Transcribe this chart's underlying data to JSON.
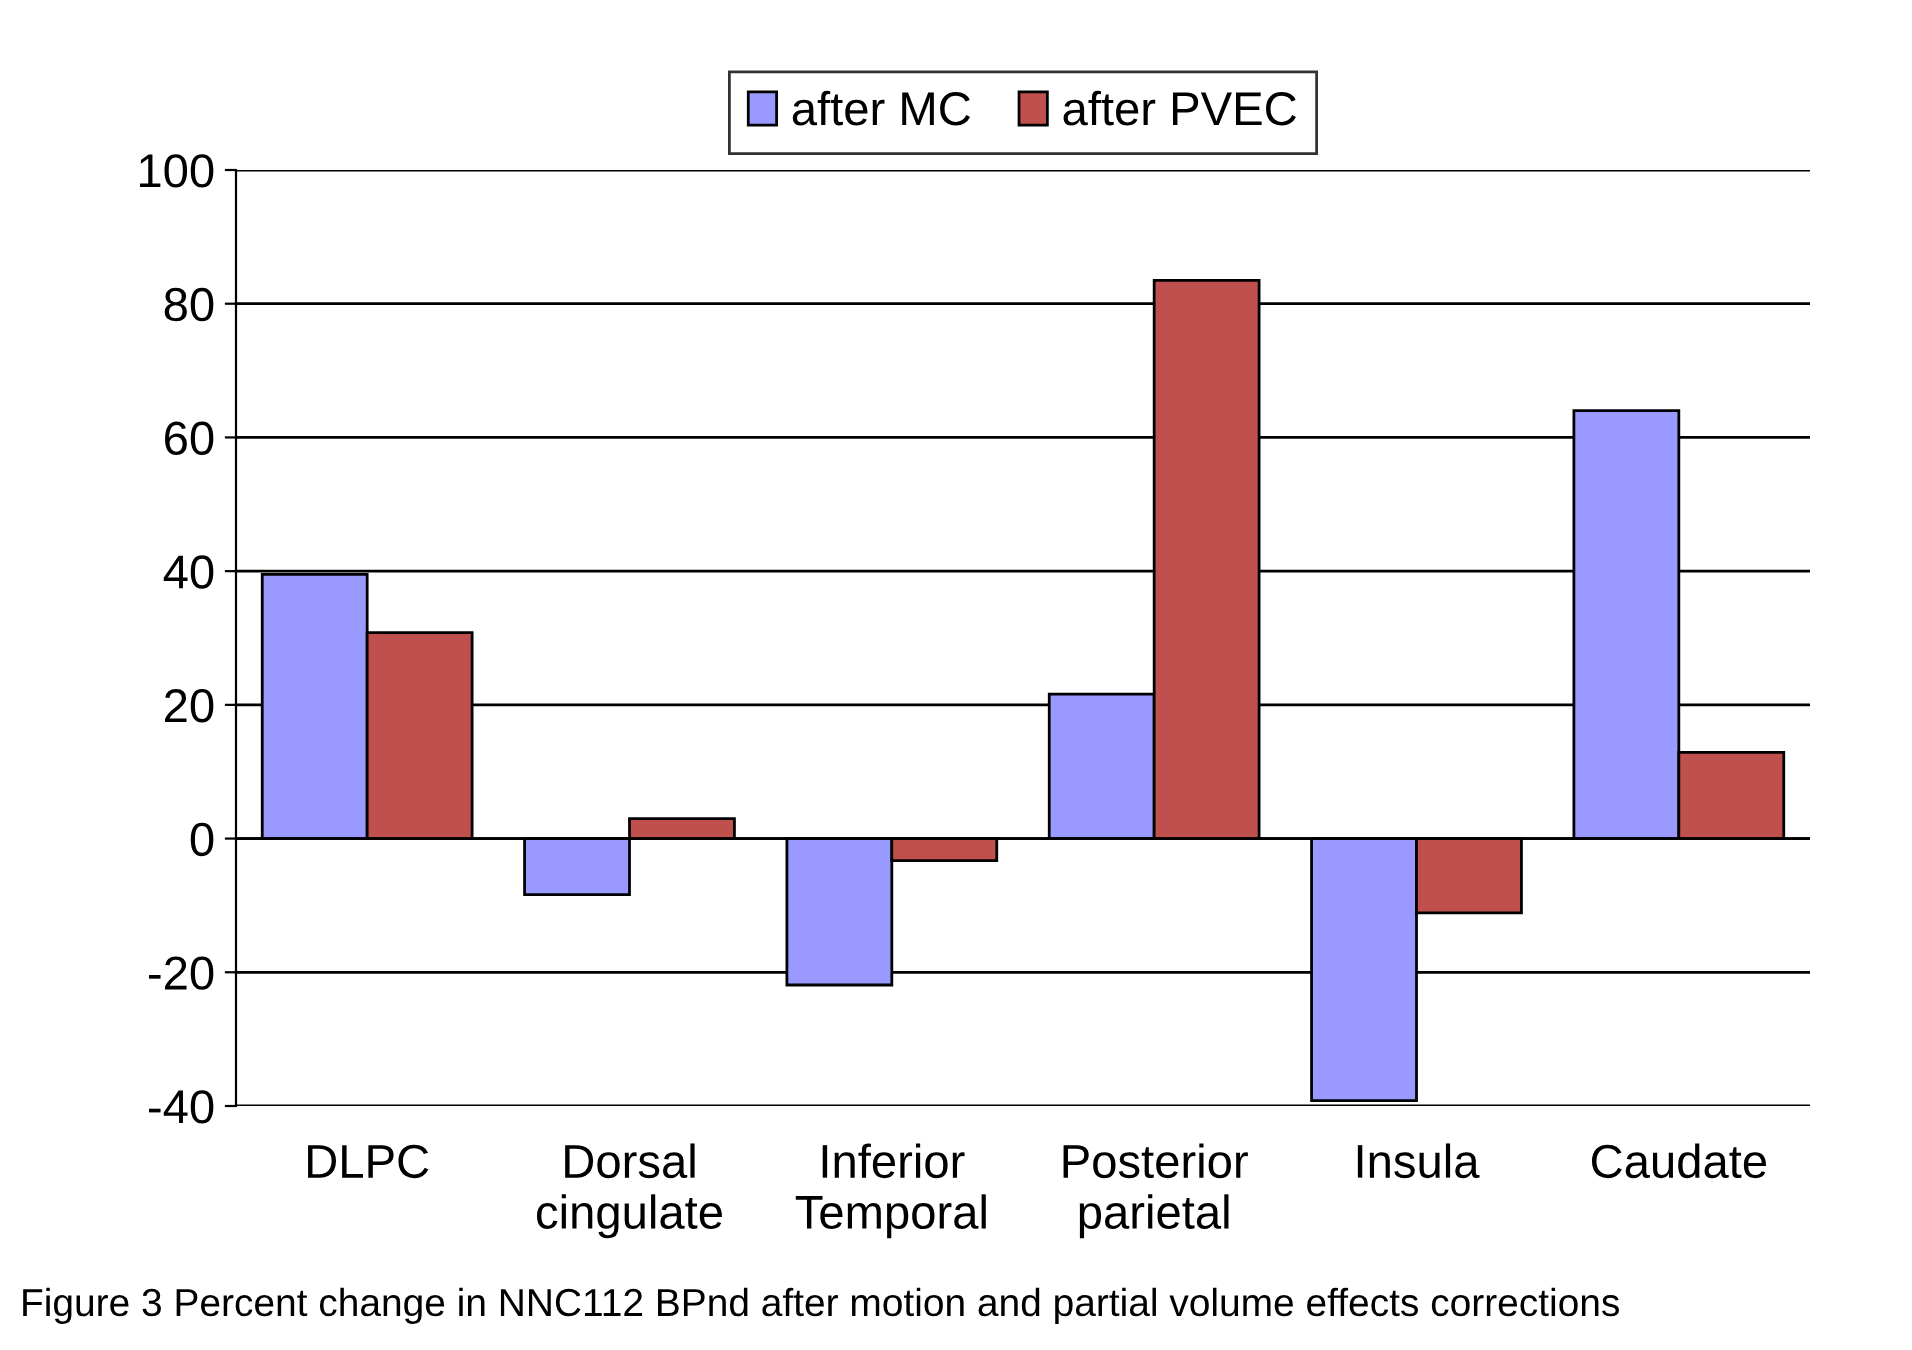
{
  "chart_data": {
    "type": "bar",
    "categories": [
      "DLPC",
      "Dorsal\ncingulate",
      "Inferior\nTemporal",
      "Posterior\nparietal",
      "Insula",
      "Caudate"
    ],
    "series": [
      {
        "name": "after MC",
        "color": "#9999ff",
        "values": [
          39.5,
          -8.4,
          -21.9,
          21.6,
          -39.2,
          64
        ]
      },
      {
        "name": "after PVEC",
        "color": "#c0504d",
        "values": [
          30.8,
          3.0,
          -3.3,
          83.5,
          -11.1,
          12.9
        ]
      }
    ],
    "ylim": [
      -40,
      100
    ],
    "yticks": [
      -40,
      -20,
      0,
      20,
      40,
      60,
      80,
      100
    ],
    "grid": "y",
    "legend": "top",
    "annotations": [
      "Figure 3 Percent change in NNC112 BPnd after motion and partial volume effects corrections"
    ]
  }
}
